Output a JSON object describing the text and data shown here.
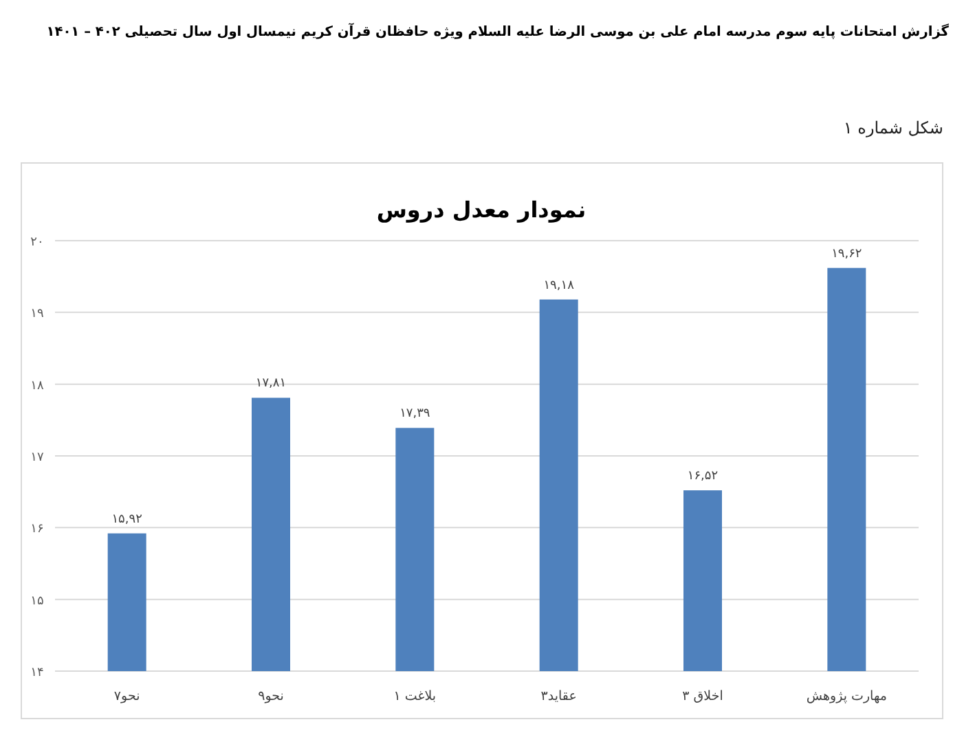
{
  "chart_data": {
    "type": "bar",
    "title": "نمودار معدل دروس",
    "annotations": [
      "گزارش امتحانات پایه سوم مدرسه امام علی بن موسی الرضا علیه السلام ویژه حافظان قرآن کریم نیمسال اول سال تحصیلی ۴۰۲ – ۱۴۰۱",
      "شکل شماره ۱"
    ],
    "categories": [
      "نحو۷",
      "نحو۹",
      "بلاغت ۱",
      "عقاید۳",
      "اخلاق ۳",
      "مهارت پژوهش"
    ],
    "values": [
      15.92,
      17.81,
      17.39,
      19.18,
      16.52,
      19.62
    ],
    "value_labels": [
      "۱۵,۹۲",
      "۱۷,۸۱",
      "۱۷,۳۹",
      "۱۹,۱۸",
      "۱۶,۵۲",
      "۱۹,۶۲"
    ],
    "color": "#4f81bd",
    "ylim": [
      14,
      20
    ],
    "yticks": [
      {
        "value": 14,
        "label": "۱۴"
      },
      {
        "value": 15,
        "label": "۱۵"
      },
      {
        "value": 16,
        "label": "۱۶"
      },
      {
        "value": 17,
        "label": "۱۷"
      },
      {
        "value": 18,
        "label": "۱۸"
      },
      {
        "value": 19,
        "label": "۱۹"
      },
      {
        "value": 20,
        "label": "۲۰"
      }
    ],
    "grid": "y"
  }
}
